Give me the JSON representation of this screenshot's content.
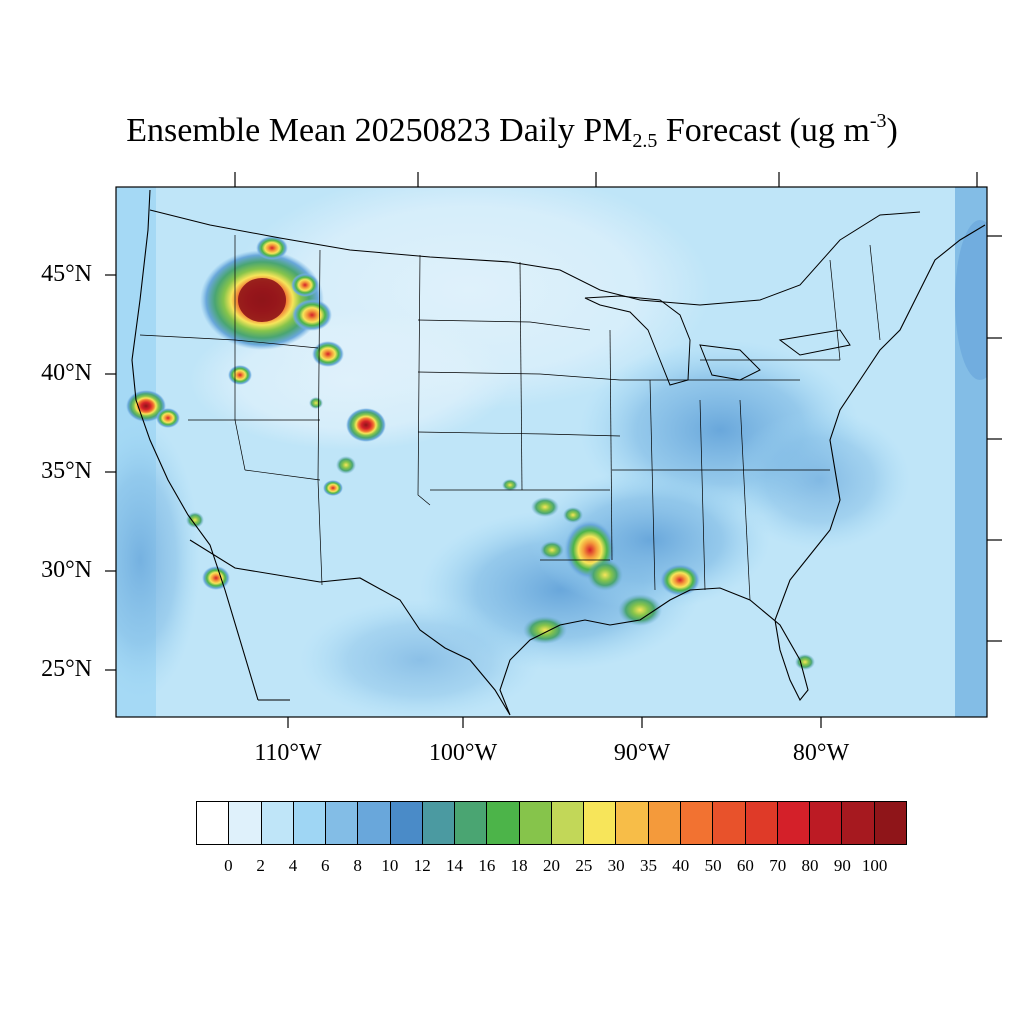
{
  "title": {
    "prefix": "Ensemble Mean 20250823 Daily PM",
    "subscript": "2.5",
    "middle": " Forecast (ug m",
    "superscript": "-3",
    "suffix": ")"
  },
  "latitude_labels": [
    "45°N",
    "40°N",
    "35°N",
    "30°N",
    "25°N"
  ],
  "longitude_labels": [
    "110°W",
    "100°W",
    "90°W",
    "80°W"
  ],
  "colorbar": {
    "labels": [
      "0",
      "2",
      "4",
      "6",
      "8",
      "10",
      "12",
      "14",
      "16",
      "18",
      "20",
      "25",
      "30",
      "35",
      "40",
      "50",
      "60",
      "70",
      "80",
      "90",
      "100"
    ],
    "colors": [
      "#ffffff",
      "#dff1fb",
      "#bfe5f8",
      "#9fd6f4",
      "#83bde6",
      "#69a7db",
      "#4a8bc8",
      "#4b9aa1",
      "#4aa572",
      "#4cb449",
      "#86c44b",
      "#c2d758",
      "#f7e55a",
      "#f7bd48",
      "#f49a3b",
      "#f27231",
      "#e8522b",
      "#df3a28",
      "#d42029",
      "#bc1b24",
      "#a6191f",
      "#8f1519"
    ]
  },
  "smoke_hotspots": [
    "Idaho/Montana wildfire plume",
    "Northern California",
    "Southern California",
    "Colorado",
    "Louisiana",
    "Mississippi/Alabama coast",
    "South Florida"
  ]
}
